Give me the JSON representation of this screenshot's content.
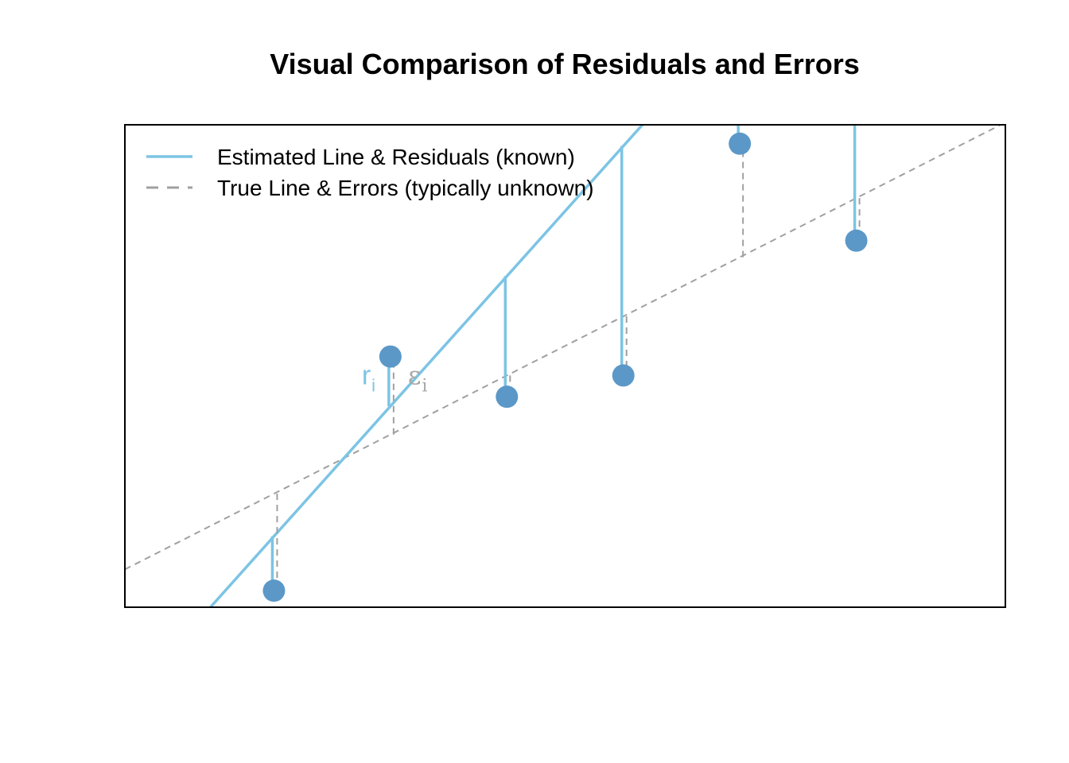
{
  "chart_data": {
    "type": "scatter",
    "title": "Visual Comparison of Residuals and Errors",
    "xlabel": "",
    "ylabel": "",
    "xlim": [
      0.72,
      8.28
    ],
    "ylim": [
      0.0,
      10.2
    ],
    "grid": false,
    "legend_position": "top-left",
    "points": [
      {
        "x": 2,
        "y": 0.35
      },
      {
        "x": 3,
        "y": 5.3
      },
      {
        "x": 4,
        "y": 4.45
      },
      {
        "x": 5,
        "y": 4.9
      },
      {
        "x": 6,
        "y": 9.8
      },
      {
        "x": 7,
        "y": 7.75
      }
    ],
    "estimated_line": {
      "intercept": -4.0,
      "slope": 2.75
    },
    "true_line": {
      "intercept": -0.1,
      "slope": 1.25
    },
    "legend": [
      {
        "label": "Estimated Line & Residuals (known)",
        "style": "solid",
        "color": "#7cc4e4"
      },
      {
        "label": "True Line & Errors (typically unknown)",
        "style": "dashed",
        "color": "#a0a0a0"
      }
    ],
    "annotations": [
      {
        "symbol": "r",
        "subscript": "i",
        "color": "#7cc4e4",
        "point_index": 1,
        "side": "left"
      },
      {
        "symbol": "ε",
        "subscript": "i",
        "color": "#a8a8a8",
        "point_index": 1,
        "side": "right"
      }
    ],
    "colors": {
      "points": "#5b98c8",
      "estimated": "#7cc4e4",
      "true": "#a0a0a0",
      "frame": "#000000"
    }
  }
}
